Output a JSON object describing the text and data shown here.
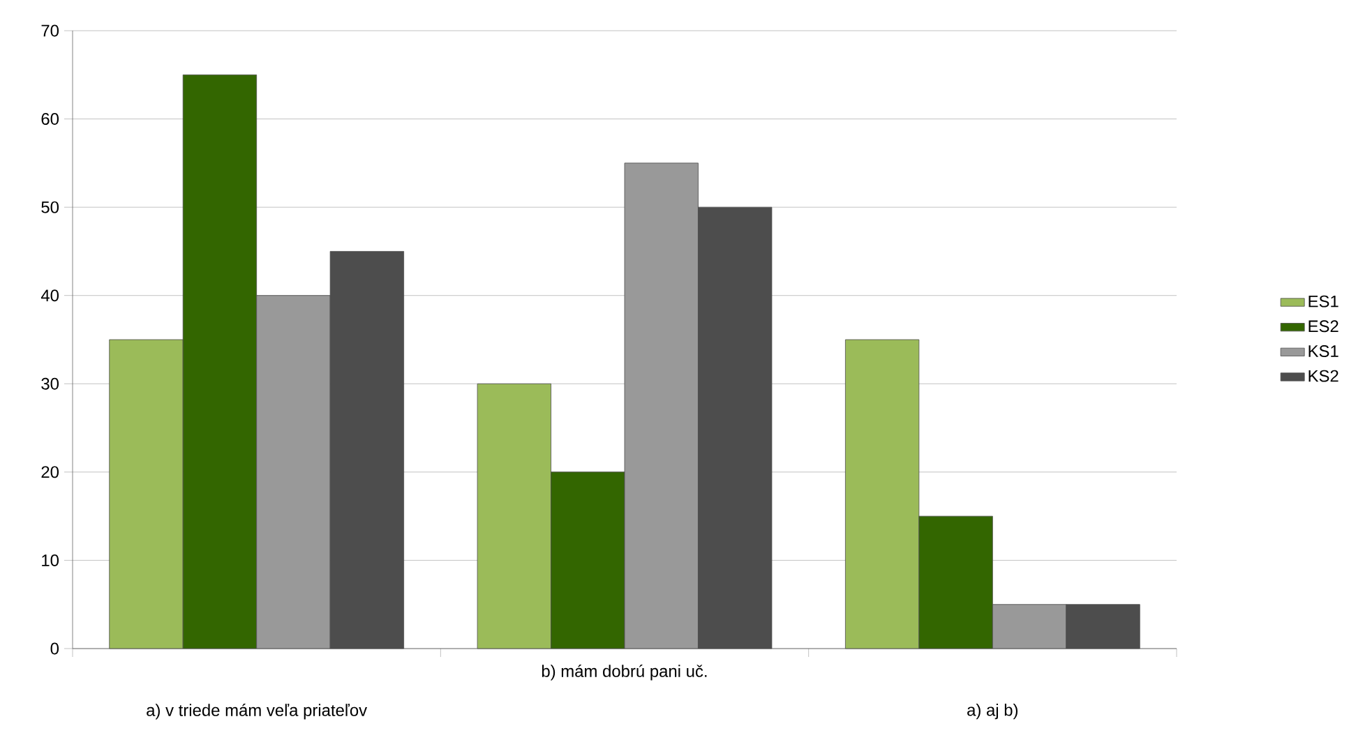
{
  "chart_data": {
    "type": "bar",
    "categories": [
      "a) v triede mám veľa priateľov",
      "b) mám dobrú pani uč.",
      "a) aj b)"
    ],
    "series": [
      {
        "name": "ES1",
        "color": "#9bbb59",
        "values": [
          35,
          30,
          35
        ]
      },
      {
        "name": "ES2",
        "color": "#336600",
        "values": [
          65,
          20,
          15
        ]
      },
      {
        "name": "KS1",
        "color": "#999999",
        "values": [
          40,
          55,
          5
        ]
      },
      {
        "name": "KS2",
        "color": "#4d4d4d",
        "values": [
          45,
          50,
          5
        ]
      }
    ],
    "ylim": [
      0,
      70
    ],
    "yticks": [
      0,
      10,
      20,
      30,
      40,
      50,
      60,
      70
    ],
    "grid": "y",
    "legend": "right"
  }
}
